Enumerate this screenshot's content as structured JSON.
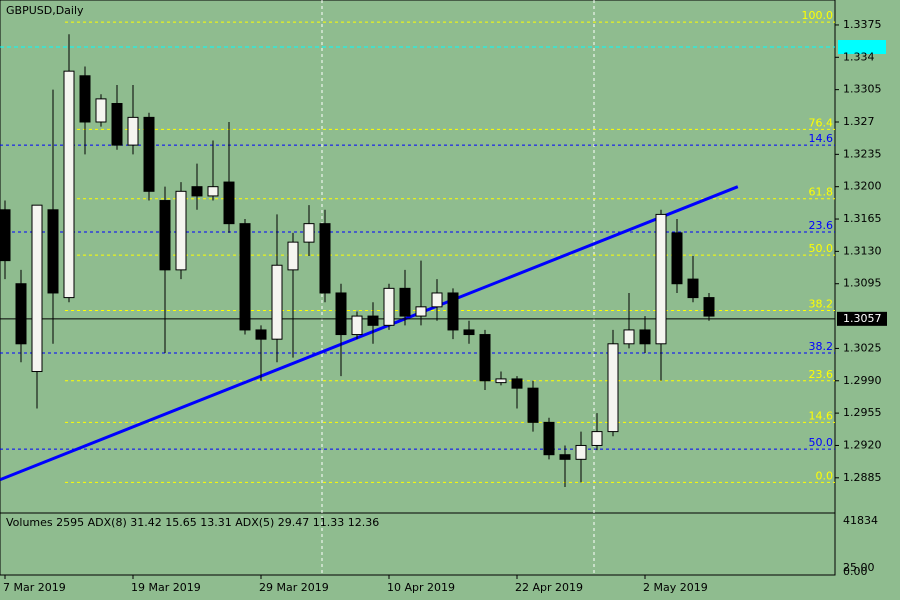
{
  "chart_data": {
    "type": "candlestick",
    "title": "GBPUSD,Daily",
    "categories": [
      "7 Mar 2019",
      null,
      null,
      null,
      null,
      null,
      null,
      null,
      "19 Mar 2019",
      null,
      null,
      null,
      null,
      null,
      null,
      null,
      "29 Mar 2019",
      null,
      null,
      null,
      null,
      null,
      null,
      null,
      "10 Apr 2019",
      null,
      null,
      null,
      null,
      null,
      null,
      null,
      "22 Apr 2019",
      null,
      null,
      null,
      null,
      null,
      null,
      null,
      "2 May 2019",
      null,
      null,
      null,
      null
    ],
    "open": [
      1.3175,
      1.3095,
      1.3,
      1.3175,
      1.308,
      1.332,
      1.327,
      1.329,
      1.3245,
      1.3275,
      1.3185,
      1.311,
      1.32,
      1.319,
      1.3205,
      1.316,
      1.3045,
      1.3035,
      1.311,
      1.314,
      1.316,
      1.3085,
      1.304,
      1.306,
      1.305,
      1.309,
      1.306,
      1.307,
      1.3085,
      1.3045,
      1.304,
      1.2988,
      1.2992,
      1.2982,
      1.2945,
      1.291,
      1.2905,
      1.292,
      1.2935,
      1.303,
      1.3045,
      1.303,
      1.315,
      1.31,
      1.308
    ],
    "high": [
      1.3185,
      1.311,
      1.318,
      1.3305,
      1.3365,
      1.333,
      1.33,
      1.331,
      1.331,
      1.328,
      1.32,
      1.3205,
      1.3225,
      1.325,
      1.327,
      1.3165,
      1.305,
      1.317,
      1.315,
      1.318,
      1.3175,
      1.3095,
      1.3065,
      1.3075,
      1.3095,
      1.311,
      1.312,
      1.31,
      1.309,
      1.3055,
      1.3045,
      1.3,
      1.2995,
      1.299,
      1.295,
      1.292,
      1.2935,
      1.2955,
      1.3045,
      1.3085,
      1.306,
      1.3175,
      1.3165,
      1.3125,
      1.3085
    ],
    "low": [
      1.31,
      1.301,
      1.296,
      1.303,
      1.3075,
      1.3235,
      1.3265,
      1.324,
      1.3235,
      1.3185,
      1.302,
      1.31,
      1.3175,
      1.3185,
      1.315,
      1.304,
      1.299,
      1.301,
      1.3015,
      1.3125,
      1.3075,
      1.2995,
      1.3035,
      1.303,
      1.3045,
      1.305,
      1.305,
      1.3055,
      1.3035,
      1.303,
      1.298,
      1.2985,
      1.296,
      1.2935,
      1.2905,
      1.2875,
      1.288,
      1.2915,
      1.293,
      1.3025,
      1.302,
      1.299,
      1.3085,
      1.3075,
      1.3055
    ],
    "close": [
      1.312,
      1.303,
      1.318,
      1.3085,
      1.3325,
      1.327,
      1.3295,
      1.3245,
      1.3275,
      1.3195,
      1.311,
      1.3195,
      1.319,
      1.32,
      1.316,
      1.3045,
      1.3035,
      1.3115,
      1.314,
      1.316,
      1.3085,
      1.304,
      1.306,
      1.305,
      1.309,
      1.306,
      1.307,
      1.3085,
      1.3045,
      1.304,
      1.299,
      1.2992,
      1.2982,
      1.2945,
      1.291,
      1.2905,
      1.292,
      1.2935,
      1.303,
      1.3045,
      1.303,
      1.317,
      1.3095,
      1.308,
      1.306
    ],
    "ylim": [
      1.2848,
      1.3402
    ],
    "yticks": [
      1.3375,
      1.334,
      1.3305,
      1.327,
      1.3235,
      {
        "value": 1.32,
        "label": "1.3200"
      },
      1.3165,
      {
        "value": 1.313,
        "label": "1.3130"
      },
      1.3095,
      1.3025,
      {
        "value": 1.299,
        "label": "1.2990"
      },
      1.2955,
      {
        "value": 1.292,
        "label": "1.2920"
      },
      1.2885
    ],
    "current_price": 1.3057,
    "fib_levels": [
      {
        "label": "100.0",
        "value": 1.3378,
        "color": "#ffff00"
      },
      {
        "label": "76.4",
        "value": 1.3262,
        "color": "#ffff00"
      },
      {
        "label": "14.6",
        "value": 1.3245,
        "color": "#0000ff"
      },
      {
        "label": "61.8",
        "value": 1.3187,
        "color": "#ffff00"
      },
      {
        "label": "23.6",
        "value": 1.3151,
        "color": "#0000ff"
      },
      {
        "label": "50.0",
        "value": 1.3126,
        "color": "#ffff00"
      },
      {
        "label": "38.2",
        "value": 1.3066,
        "color": "#ffff00"
      },
      {
        "label": "38.2",
        "value": 1.302,
        "color": "#0000ff"
      },
      {
        "label": "23.6",
        "value": 1.299,
        "color": "#ffff00"
      },
      {
        "label": "14.6",
        "value": 1.2945,
        "color": "#ffff00"
      },
      {
        "label": "50.0",
        "value": 1.2916,
        "color": "#0000ff"
      },
      {
        "label": "0.0",
        "value": 1.288,
        "color": "#ffff00"
      }
    ],
    "trendline": {
      "x": [
        -0.3,
        45.8
      ],
      "y": [
        1.2883,
        1.32
      ],
      "color": "#0000ff"
    },
    "indicator_label": "Volumes 2595 ADX(8) 31.42 15.65 13.31 ADX(5) 29.47 11.33 12.36",
    "indicator_scale": [
      "41834",
      "25.00",
      "0.00"
    ]
  }
}
